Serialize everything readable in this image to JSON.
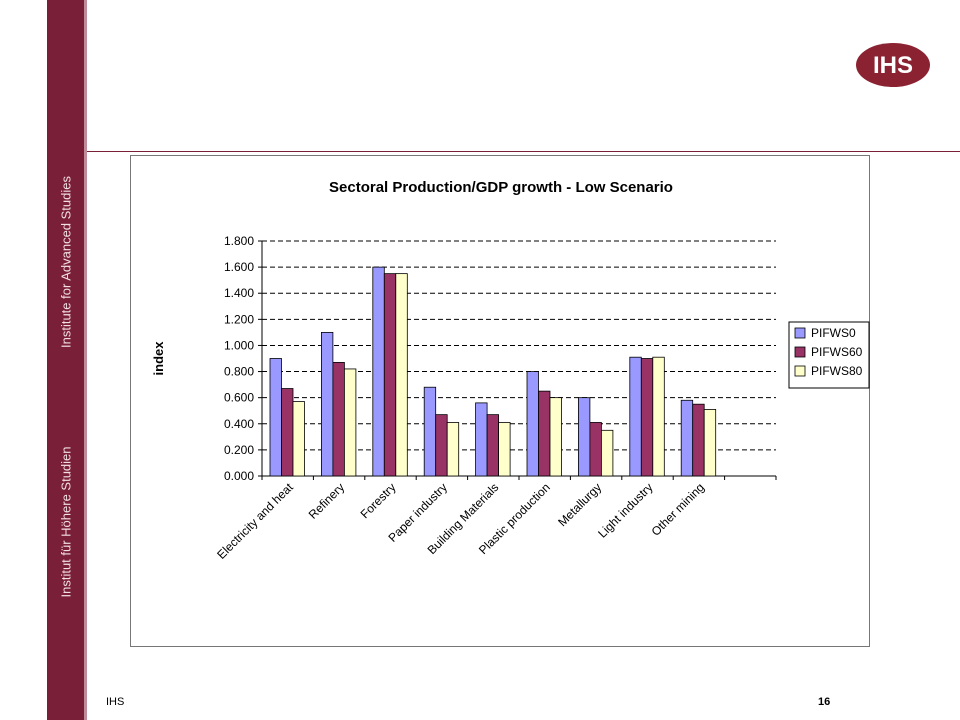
{
  "sidebar": {
    "text_en": "Institute for Advanced Studies",
    "text_de": "Institut für Höhere Studien",
    "color": "#7a1f38"
  },
  "logo": {
    "text": "IHS",
    "color": "#8b2232"
  },
  "footer": {
    "left": "IHS",
    "page": "16"
  },
  "chart_data": {
    "type": "bar",
    "title": "Sectoral Production/GDP growth - Low Scenario",
    "xlabel": "",
    "ylabel": "index",
    "ylim": [
      0,
      1.8
    ],
    "yticks": [
      "0.000",
      "0.200",
      "0.400",
      "0.600",
      "0.800",
      "1.000",
      "1.200",
      "1.400",
      "1.600",
      "1.800"
    ],
    "grid": true,
    "legend_position": "right",
    "categories": [
      "Electricity and heat",
      "Refinery",
      "Forestry",
      "Paper industry",
      "Building Materials",
      "Plastic production",
      "Metallurgy",
      "Light industry",
      "Other mining",
      ""
    ],
    "series": [
      {
        "name": "PIFWS0",
        "color": "#9999ff",
        "values": [
          0.9,
          1.1,
          1.6,
          0.68,
          0.56,
          0.8,
          0.6,
          0.91,
          0.58,
          null
        ]
      },
      {
        "name": "PIFWS60",
        "color": "#993366",
        "values": [
          0.67,
          0.87,
          1.55,
          0.47,
          0.47,
          0.65,
          0.41,
          0.9,
          0.55,
          null
        ]
      },
      {
        "name": "PIFWS80",
        "color": "#ffffcc",
        "values": [
          0.57,
          0.82,
          1.55,
          0.41,
          0.41,
          0.6,
          0.35,
          0.91,
          0.51,
          null
        ]
      }
    ]
  }
}
